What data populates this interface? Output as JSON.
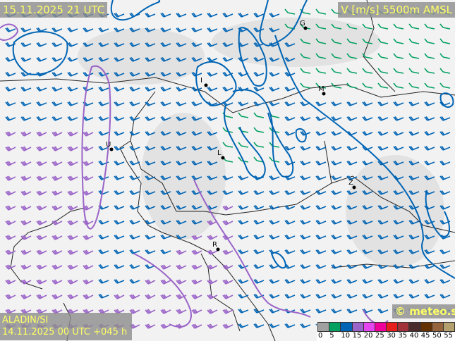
{
  "header": {
    "valid_time": "15.11.2025 21 UTC",
    "field": "V [m/s] 5500m AMSL"
  },
  "footer": {
    "model": "ALADIN/SI",
    "run": "14.11.2025 00 UTC +045 h",
    "copyright": "© meteo.si"
  },
  "legend": {
    "ticks": [
      "0",
      "5",
      "10",
      "15",
      "20",
      "25",
      "30",
      "35",
      "40",
      "45",
      "50",
      "55"
    ],
    "colors": [
      "#a0a0a0",
      "#00a060",
      "#0064b4",
      "#9a64c8",
      "#e646f0",
      "#f0009a",
      "#e61e1e",
      "#a0303a",
      "#4a2c2c",
      "#643200",
      "#96643c",
      "#b4a06e"
    ]
  },
  "cities": [
    {
      "label": "G"
    },
    {
      "label": "I"
    },
    {
      "label": "M"
    },
    {
      "label": "L"
    },
    {
      "label": "Z"
    },
    {
      "label": "U"
    },
    {
      "label": "R"
    }
  ],
  "field_colors": {
    "5-10": "#00a060",
    "10-15": "#0064b4",
    "15-20": "#9a64c8"
  }
}
